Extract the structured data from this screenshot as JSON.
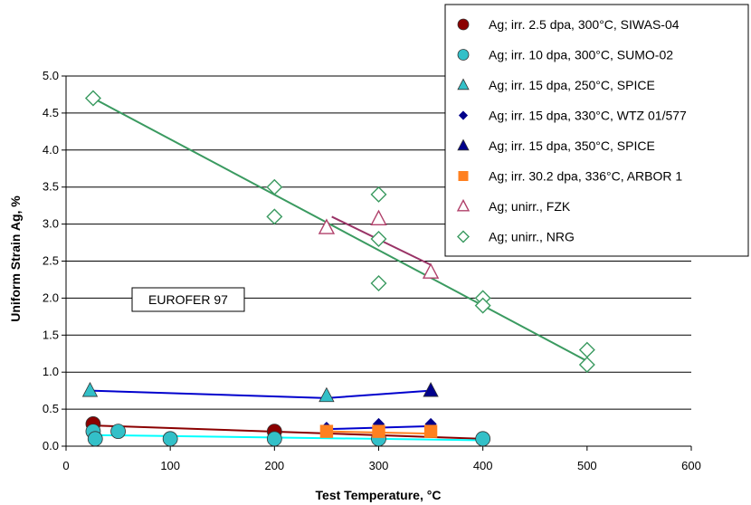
{
  "chart_data": {
    "type": "scatter",
    "title": "",
    "xlabel": "Test Temperature, °C",
    "ylabel": "Uniform Strain Ag, %",
    "xlim": [
      0,
      600
    ],
    "ylim": [
      0,
      5
    ],
    "xticks": [
      "0",
      "100",
      "200",
      "300",
      "400",
      "500",
      "600"
    ],
    "yticks": [
      "0.0",
      "0.5",
      "1.0",
      "1.5",
      "2.0",
      "2.5",
      "3.0",
      "3.5",
      "4.0",
      "4.5",
      "5.0"
    ],
    "grid": "horizontal",
    "legend_position": "top-right",
    "annotation": "EUROFER 97",
    "series": [
      {
        "name": "Ag; irr. 2.5 dpa, 300°C, SIWAS-04",
        "marker": "circle",
        "color": "#8b0000",
        "points": [
          [
            26,
            0.3
          ],
          [
            200,
            0.2
          ]
        ],
        "fit": [
          [
            26,
            0.28
          ],
          [
            400,
            0.1
          ]
        ],
        "fit_color": "#8b0000"
      },
      {
        "name": "Ag; irr. 10 dpa, 300°C, SUMO-02",
        "marker": "circle",
        "color": "#33c0c8",
        "points": [
          [
            26,
            0.2
          ],
          [
            28,
            0.1
          ],
          [
            50,
            0.2
          ],
          [
            100,
            0.1
          ],
          [
            200,
            0.1
          ],
          [
            300,
            0.1
          ],
          [
            400,
            0.1
          ]
        ],
        "fit": [
          [
            26,
            0.15
          ],
          [
            400,
            0.08
          ]
        ],
        "fit_color": "#00ffff"
      },
      {
        "name": "Ag; irr. 15 dpa, 250°C, SPICE",
        "marker": "triangle",
        "color": "#33c0c8",
        "points": [
          [
            23,
            0.75
          ],
          [
            250,
            0.68
          ]
        ],
        "fit": [
          [
            23,
            0.75
          ],
          [
            250,
            0.65
          ],
          [
            350,
            0.75
          ]
        ],
        "fit_color": "#0000cd"
      },
      {
        "name": "Ag; irr. 15 dpa, 330°C, WTZ 01/577",
        "marker": "diamond",
        "color": "#00008b",
        "points": [
          [
            250,
            0.25
          ],
          [
            300,
            0.3
          ],
          [
            350,
            0.3
          ]
        ],
        "fit": [
          [
            250,
            0.23
          ],
          [
            350,
            0.27
          ]
        ],
        "fit_color": "#0000cd"
      },
      {
        "name": "Ag; irr. 15 dpa, 350°C, SPICE",
        "marker": "triangle",
        "color": "#00008b",
        "points": [
          [
            350,
            0.75
          ]
        ],
        "fit": [],
        "fit_color": "#0000cd"
      },
      {
        "name": "Ag; irr. 30.2 dpa, 336°C, ARBOR 1",
        "marker": "square",
        "color": "#ff8020",
        "points": [
          [
            250,
            0.2
          ],
          [
            300,
            0.2
          ],
          [
            350,
            0.2
          ]
        ],
        "fit": [
          [
            250,
            0.2
          ],
          [
            350,
            0.17
          ]
        ],
        "fit_color": "#ff8020"
      },
      {
        "name": "Ag; unirr., FZK",
        "marker": "triangle-open",
        "color": "#b0406a",
        "points": [
          [
            250,
            2.95
          ],
          [
            300,
            3.07
          ],
          [
            350,
            2.35
          ]
        ],
        "fit": [
          [
            255,
            3.1
          ],
          [
            350,
            2.45
          ]
        ],
        "fit_color": "#993366"
      },
      {
        "name": "Ag; unirr., NRG",
        "marker": "diamond-open",
        "color": "#3a9a60",
        "points": [
          [
            26,
            4.7
          ],
          [
            200,
            3.5
          ],
          [
            200,
            3.1
          ],
          [
            300,
            3.4
          ],
          [
            300,
            2.8
          ],
          [
            300,
            2.2
          ],
          [
            400,
            2.0
          ],
          [
            400,
            1.9
          ],
          [
            500,
            1.3
          ],
          [
            500,
            1.1
          ]
        ],
        "fit": [
          [
            26,
            4.7
          ],
          [
            500,
            1.15
          ]
        ],
        "fit_color": "#3a9a60"
      }
    ]
  }
}
